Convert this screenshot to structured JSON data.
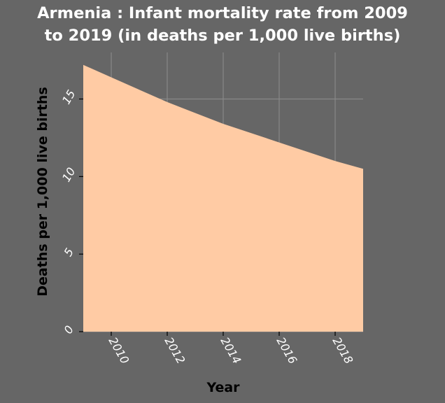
{
  "chart_data": {
    "type": "area",
    "title_lines": [
      "Armenia : Infant mortality rate from 2009",
      "to 2019 (in deaths per 1,000 live births)"
    ],
    "xlabel": "Year",
    "ylabel": "Deaths per 1,000 live births",
    "xlim": [
      2009,
      2019
    ],
    "ylim": [
      0,
      18
    ],
    "x_ticks": [
      2010,
      2012,
      2014,
      2016,
      2018
    ],
    "y_ticks": [
      0,
      5,
      10,
      15
    ],
    "grid": true,
    "fill_color": "#ffcba4",
    "background_color": "#666666",
    "x": [
      2009,
      2010,
      2011,
      2012,
      2013,
      2014,
      2015,
      2016,
      2017,
      2018,
      2019
    ],
    "values": [
      17.2,
      16.4,
      15.6,
      14.8,
      14.1,
      13.4,
      12.8,
      12.2,
      11.6,
      11.0,
      10.5
    ]
  }
}
